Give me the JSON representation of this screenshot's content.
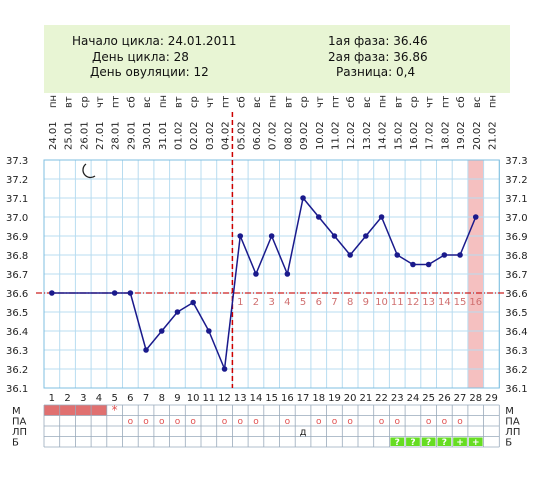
{
  "summary": {
    "cycle_start_label": "Начало цикла:",
    "cycle_start_value": "24.01.2011",
    "cycle_day_label": "День цикла:",
    "cycle_day_value": "28",
    "ovulation_day_label": "День овуляции:",
    "ovulation_day_value": "12",
    "phase1_label": "1ая фаза:",
    "phase1_value": "36.46",
    "phase2_label": "2ая фаза:",
    "phase2_value": "36.86",
    "difference_label": "Разница:",
    "difference_value": "0,4"
  },
  "legend_rows": [
    "М",
    "ПА",
    "ЛП",
    "Б"
  ],
  "moon_icon": "crescent-moon-icon",
  "colors": {
    "grid": "#b8dcf0",
    "line": "#1a1a8c",
    "coverline": "#cc2222",
    "ovulation_marker": "#cc0000",
    "highlight_column": "#f5c0c0",
    "summary_bg": "#e8f5d4",
    "menstruation": "#e07070",
    "ba_cell": "#66dd22"
  },
  "chart_data": {
    "type": "line",
    "title": "",
    "xlabel": "",
    "ylabel": "",
    "ylim": [
      36.1,
      37.3
    ],
    "y_ticks": [
      "37.3",
      "37.2",
      "37.1",
      "37.0",
      "36.9",
      "36.8",
      "36.7",
      "36.6",
      "36.5",
      "36.4",
      "36.3",
      "36.2",
      "36.1"
    ],
    "cycle_days": [
      1,
      2,
      3,
      4,
      5,
      6,
      7,
      8,
      9,
      10,
      11,
      12,
      13,
      14,
      15,
      16,
      17,
      18,
      19,
      20,
      21,
      22,
      23,
      24,
      25,
      26,
      27,
      28,
      29
    ],
    "dates": [
      "24.01",
      "25.01",
      "26.01",
      "27.01",
      "28.01",
      "29.01",
      "30.01",
      "31.01",
      "01.02",
      "02.02",
      "03.02",
      "04.02",
      "05.02",
      "06.02",
      "07.02",
      "08.02",
      "09.02",
      "10.02",
      "11.02",
      "12.02",
      "13.02",
      "14.02",
      "15.02",
      "16.02",
      "17.02",
      "18.02",
      "19.02",
      "20.02",
      "21.02"
    ],
    "weekdays": [
      "пн",
      "вт",
      "ср",
      "чт",
      "пт",
      "сб",
      "вс",
      "пн",
      "вт",
      "ср",
      "чт",
      "пт",
      "сб",
      "вс",
      "пн",
      "вт",
      "ср",
      "чт",
      "пт",
      "сб",
      "вс",
      "пн",
      "вт",
      "ср",
      "чт",
      "пт",
      "сб",
      "вс",
      "пн"
    ],
    "temperatures": [
      36.6,
      null,
      null,
      null,
      36.6,
      36.6,
      36.3,
      36.4,
      36.5,
      36.55,
      36.4,
      36.2,
      36.9,
      36.7,
      36.9,
      36.7,
      37.1,
      37.0,
      36.9,
      36.8,
      36.9,
      37.0,
      36.8,
      36.75,
      36.75,
      36.8,
      36.8,
      37.0,
      null
    ],
    "coverline": 36.6,
    "ovulation_day": 12,
    "current_day": 28,
    "luteal_day_labels": [
      "1",
      "2",
      "3",
      "4",
      "5",
      "6",
      "7",
      "8",
      "9",
      "10",
      "11",
      "12",
      "13",
      "14",
      "15",
      "16"
    ],
    "luteal_start_day": 13,
    "menstruation_days": [
      1,
      2,
      3,
      4
    ],
    "star_day": 5,
    "pa_days": [
      6,
      7,
      8,
      9,
      10,
      12,
      13,
      14,
      16,
      18,
      19,
      20,
      22,
      23,
      25,
      26,
      27
    ],
    "pa_symbol": "o",
    "star_symbol": "*",
    "lp_entries": [
      {
        "day": 17,
        "text": "д"
      }
    ],
    "b_cells": [
      {
        "day": 23,
        "text": "?"
      },
      {
        "day": 24,
        "text": "?"
      },
      {
        "day": 25,
        "text": "?"
      },
      {
        "day": 26,
        "text": "?"
      },
      {
        "day": 27,
        "text": "+"
      },
      {
        "day": 28,
        "text": "+"
      }
    ]
  }
}
